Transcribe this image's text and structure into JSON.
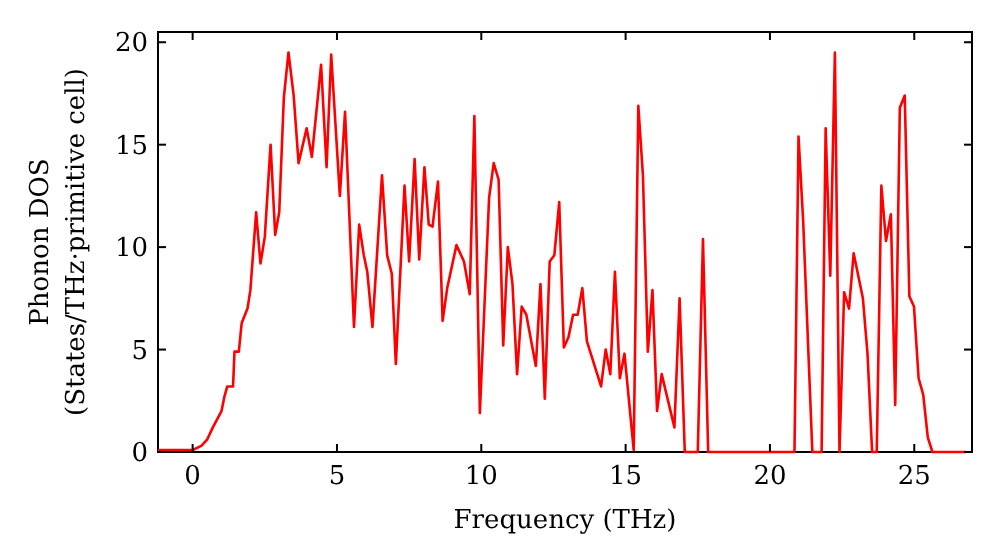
{
  "chart_data": {
    "type": "line",
    "xlabel": "Frequency (THz)",
    "ylabel": "Phonon DOS\n(States/THz·primitive cell)",
    "xlim": [
      -1.2,
      27
    ],
    "ylim": [
      0,
      20.5
    ],
    "xticks": [
      0,
      5,
      10,
      15,
      20,
      25
    ],
    "yticks": [
      0,
      5,
      10,
      15,
      20
    ],
    "grid": false,
    "marker": "none",
    "line_style": "solid",
    "series": [
      {
        "color": "#ff0000",
        "x": [
          -1.2,
          0,
          0.3,
          0.5,
          0.7,
          1.0,
          1.1,
          1.2,
          1.4,
          1.45,
          1.6,
          1.7,
          1.9,
          2.0,
          2.2,
          2.35,
          2.5,
          2.7,
          2.86,
          3.0,
          3.16,
          3.32,
          3.5,
          3.67,
          3.95,
          4.13,
          4.45,
          4.64,
          4.8,
          5.1,
          5.28,
          5.59,
          5.77,
          5.93,
          6.05,
          6.23,
          6.56,
          6.74,
          6.9,
          7.04,
          7.34,
          7.5,
          7.69,
          7.85,
          8.03,
          8.18,
          8.31,
          8.5,
          8.66,
          8.82,
          9.14,
          9.4,
          9.6,
          9.76,
          9.95,
          10.27,
          10.43,
          10.6,
          10.76,
          10.92,
          11.08,
          11.24,
          11.4,
          11.56,
          11.89,
          12.05,
          12.2,
          12.37,
          12.53,
          12.7,
          12.86,
          13.02,
          13.18,
          13.34,
          13.5,
          13.66,
          14.15,
          14.31,
          14.47,
          14.63,
          14.8,
          14.96,
          15.28,
          15.44,
          15.6,
          15.77,
          15.93,
          16.09,
          16.25,
          16.69,
          16.87,
          17.05,
          17.5,
          17.68,
          17.86,
          20.85,
          20.99,
          21.15,
          21.47,
          21.79,
          21.93,
          22.09,
          22.25,
          22.41,
          22.57,
          22.74,
          22.9,
          23.22,
          23.38,
          23.54,
          23.7,
          23.86,
          24.02,
          24.19,
          24.34,
          24.5,
          24.67,
          24.83,
          24.99,
          25.15,
          25.31,
          25.47,
          25.63,
          26.8
        ],
        "values": [
          0.1,
          0.1,
          0.3,
          0.6,
          1.2,
          2,
          2.7,
          3.2,
          3.2,
          4.9,
          4.9,
          6.3,
          7,
          7.9,
          11.7,
          9.2,
          10.5,
          15,
          10.6,
          11.7,
          17.3,
          19.5,
          17.4,
          14.1,
          15.8,
          14.4,
          18.9,
          13.9,
          19.4,
          12.5,
          16.6,
          6.1,
          11.1,
          9.6,
          8.8,
          6.1,
          13.5,
          9.6,
          8.7,
          4.3,
          13,
          9.3,
          14.3,
          9.4,
          13.9,
          11.1,
          11,
          13.2,
          6.4,
          8,
          10.1,
          9.3,
          7.7,
          16.4,
          1.9,
          12.4,
          14.1,
          13.3,
          5.2,
          10,
          8.2,
          3.8,
          7.1,
          6.7,
          4.2,
          8.2,
          2.6,
          9.3,
          9.6,
          12.2,
          5.1,
          5.6,
          6.7,
          6.7,
          8,
          5.4,
          3.2,
          5,
          3.8,
          8.8,
          3.6,
          4.8,
          0.1,
          16.9,
          13.5,
          4.9,
          7.9,
          2,
          3.8,
          1.2,
          7.5,
          0,
          0,
          10.4,
          0,
          0,
          15.4,
          11.3,
          0,
          0,
          15.8,
          8.6,
          19.5,
          0,
          7.8,
          7,
          9.7,
          7.5,
          4.8,
          0,
          0,
          13,
          10.3,
          11.6,
          2.3,
          16.8,
          17.4,
          7.6,
          7.1,
          3.6,
          2.8,
          0.7,
          0,
          0
        ]
      }
    ]
  }
}
